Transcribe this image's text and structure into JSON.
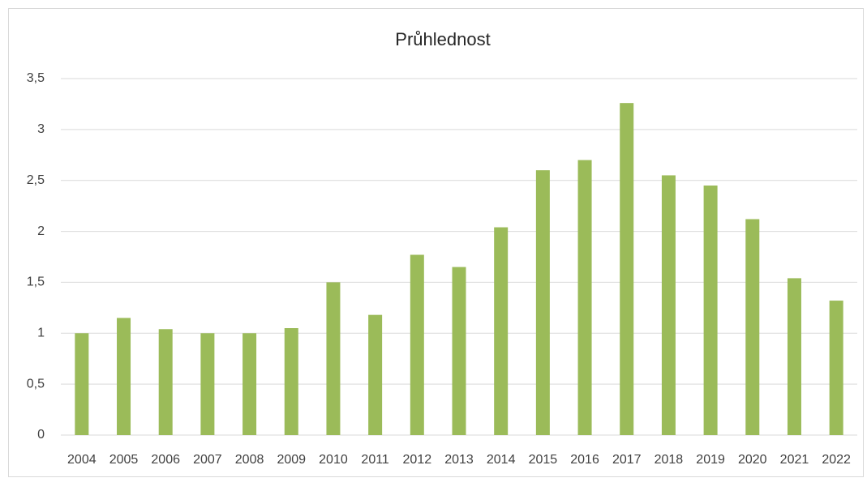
{
  "chart_data": {
    "type": "bar",
    "title": "Průhlednost",
    "categories": [
      "2004",
      "2005",
      "2006",
      "2007",
      "2008",
      "2009",
      "2010",
      "2011",
      "2012",
      "2013",
      "2014",
      "2015",
      "2016",
      "2017",
      "2018",
      "2019",
      "2020",
      "2021",
      "2022"
    ],
    "values": [
      1.0,
      1.15,
      1.04,
      1.0,
      1.0,
      1.05,
      1.5,
      1.18,
      1.77,
      1.65,
      2.04,
      2.6,
      2.7,
      3.26,
      2.55,
      2.45,
      2.12,
      1.54,
      1.32
    ],
    "color": "#9bbb59",
    "ylim": [
      0,
      3.5
    ],
    "yticks": [
      0,
      {
        "value": 0.5,
        "label": "0,5"
      },
      1,
      {
        "value": 1.5,
        "label": "1,5"
      },
      2,
      {
        "value": 2.5,
        "label": "2,5"
      },
      3,
      {
        "value": 3.5,
        "label": "3,5"
      }
    ],
    "grid": true
  }
}
